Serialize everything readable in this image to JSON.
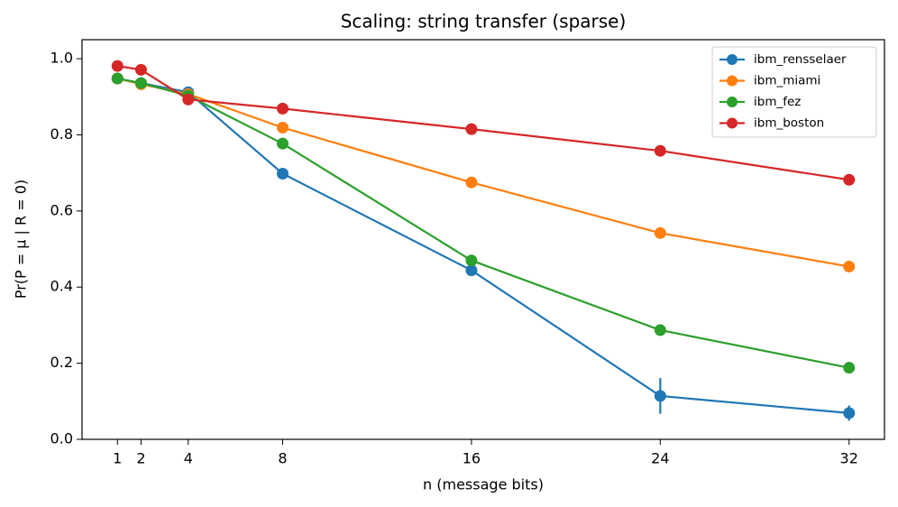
{
  "chart_data": {
    "type": "line",
    "title": "Scaling: string transfer (sparse)",
    "x_label": "n (message bits)",
    "y_label": "Pr(P = μ | R = 0)",
    "x": [
      1,
      2,
      4,
      8,
      16,
      24,
      32
    ],
    "xlim": [
      -0.5,
      33.5
    ],
    "xticks": [
      1,
      2,
      4,
      8,
      16,
      24,
      32
    ],
    "ylim": [
      0,
      1.05
    ],
    "yticks": [
      {
        "value": 0,
        "label": "0.0"
      },
      0.2,
      0.4,
      0.6,
      0.8,
      {
        "value": 1,
        "label": "1.0"
      }
    ],
    "legend": "upper right",
    "series": [
      {
        "name": "ibm_rensselaer",
        "color": "#1f77b4",
        "values": [
          0.948,
          0.936,
          0.912,
          0.698,
          0.444,
          0.114,
          0.069
        ],
        "errors": [
          0.005,
          0.005,
          0.005,
          0.006,
          0.006,
          0.047,
          0.02
        ]
      },
      {
        "name": "ibm_miami",
        "color": "#ff7f0e",
        "values": [
          0.948,
          0.933,
          0.907,
          0.819,
          0.675,
          0.542,
          0.454
        ]
      },
      {
        "name": "ibm_fez",
        "color": "#2ca02c",
        "values": [
          0.948,
          0.936,
          0.903,
          0.777,
          0.47,
          0.287,
          0.188
        ]
      },
      {
        "name": "ibm_boston",
        "color": "#d62728",
        "values": [
          0.981,
          0.971,
          0.893,
          0.869,
          0.815,
          0.758,
          0.682
        ]
      }
    ]
  }
}
